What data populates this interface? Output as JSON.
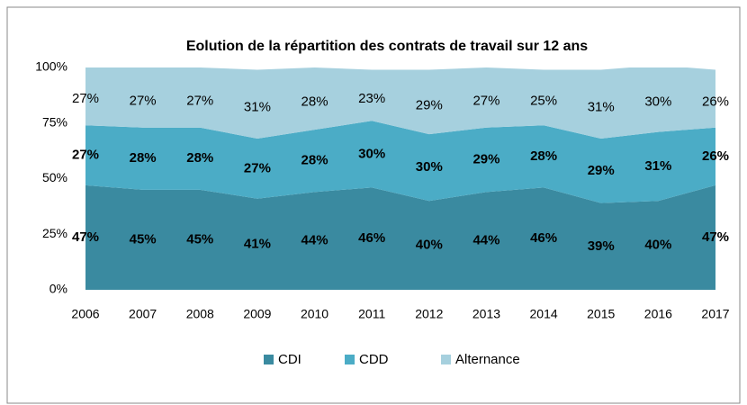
{
  "chart_data": {
    "type": "stacked_area",
    "title": "Eolution de la répartition des contrats de travail sur 12 ans",
    "categories": [
      "2006",
      "2007",
      "2008",
      "2009",
      "2010",
      "2011",
      "2012",
      "2013",
      "2014",
      "2015",
      "2016",
      "2017"
    ],
    "series": [
      {
        "name": "CDI",
        "color": "#3a8aa0",
        "values": [
          47,
          45,
          45,
          41,
          44,
          46,
          40,
          44,
          46,
          39,
          40,
          47
        ],
        "value_labels": [
          "47%",
          "45%",
          "45%",
          "41%",
          "44%",
          "46%",
          "40%",
          "44%",
          "46%",
          "39%",
          "40%",
          "47%"
        ]
      },
      {
        "name": "CDD",
        "color": "#4bacc6",
        "values": [
          27,
          28,
          28,
          27,
          28,
          30,
          30,
          29,
          28,
          29,
          31,
          26
        ],
        "value_labels": [
          "27%",
          "28%",
          "28%",
          "27%",
          "28%",
          "30%",
          "30%",
          "29%",
          "28%",
          "29%",
          "31%",
          "26%"
        ]
      },
      {
        "name": "Alternance",
        "color": "#a6d0de",
        "values": [
          27,
          27,
          27,
          31,
          28,
          23,
          29,
          27,
          25,
          31,
          30,
          26
        ],
        "value_labels": [
          "27%",
          "27%",
          "27%",
          "31%",
          "28%",
          "23%",
          "29%",
          "27%",
          "25%",
          "31%",
          "30%",
          "26%"
        ]
      }
    ],
    "ylim": [
      0,
      100
    ],
    "yticks": [
      {
        "value": 0,
        "label": "0%"
      },
      {
        "value": 25,
        "label": "25%"
      },
      {
        "value": 50,
        "label": "50%"
      },
      {
        "value": 75,
        "label": "75%"
      },
      {
        "value": 100,
        "label": "100%"
      }
    ],
    "legend": "bottom"
  }
}
